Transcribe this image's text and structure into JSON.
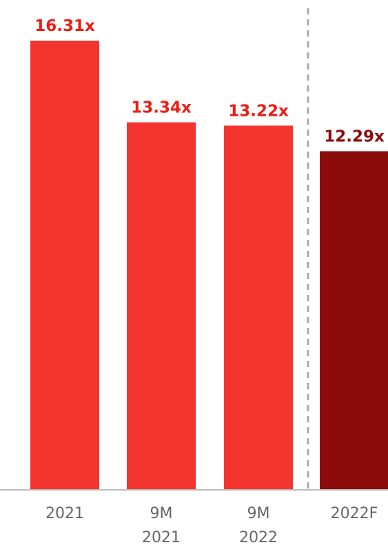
{
  "chart_data": {
    "type": "bar",
    "categories": [
      "2021",
      "9M 2021",
      "9M 2022",
      "2022F"
    ],
    "category_label_lines": [
      [
        "2021"
      ],
      [
        "9M",
        "2021"
      ],
      [
        "9M",
        "2022"
      ],
      [
        "2022F"
      ]
    ],
    "values": [
      16.31,
      13.34,
      13.22,
      12.29
    ],
    "data_labels": [
      "16.31x",
      "13.34x",
      "13.22x",
      "12.29x"
    ],
    "bar_colors": [
      "#f4342f",
      "#f4342f",
      "#f4342f",
      "#8b0c0a"
    ],
    "label_colors": [
      "#ee1c14",
      "#ee1c14",
      "#ee1c14",
      "#8b0c0a"
    ],
    "separator_before_index": 3,
    "ylim": [
      0,
      16.31
    ],
    "title": "",
    "xlabel": "",
    "ylabel": "",
    "grid": false,
    "legend": "none"
  }
}
